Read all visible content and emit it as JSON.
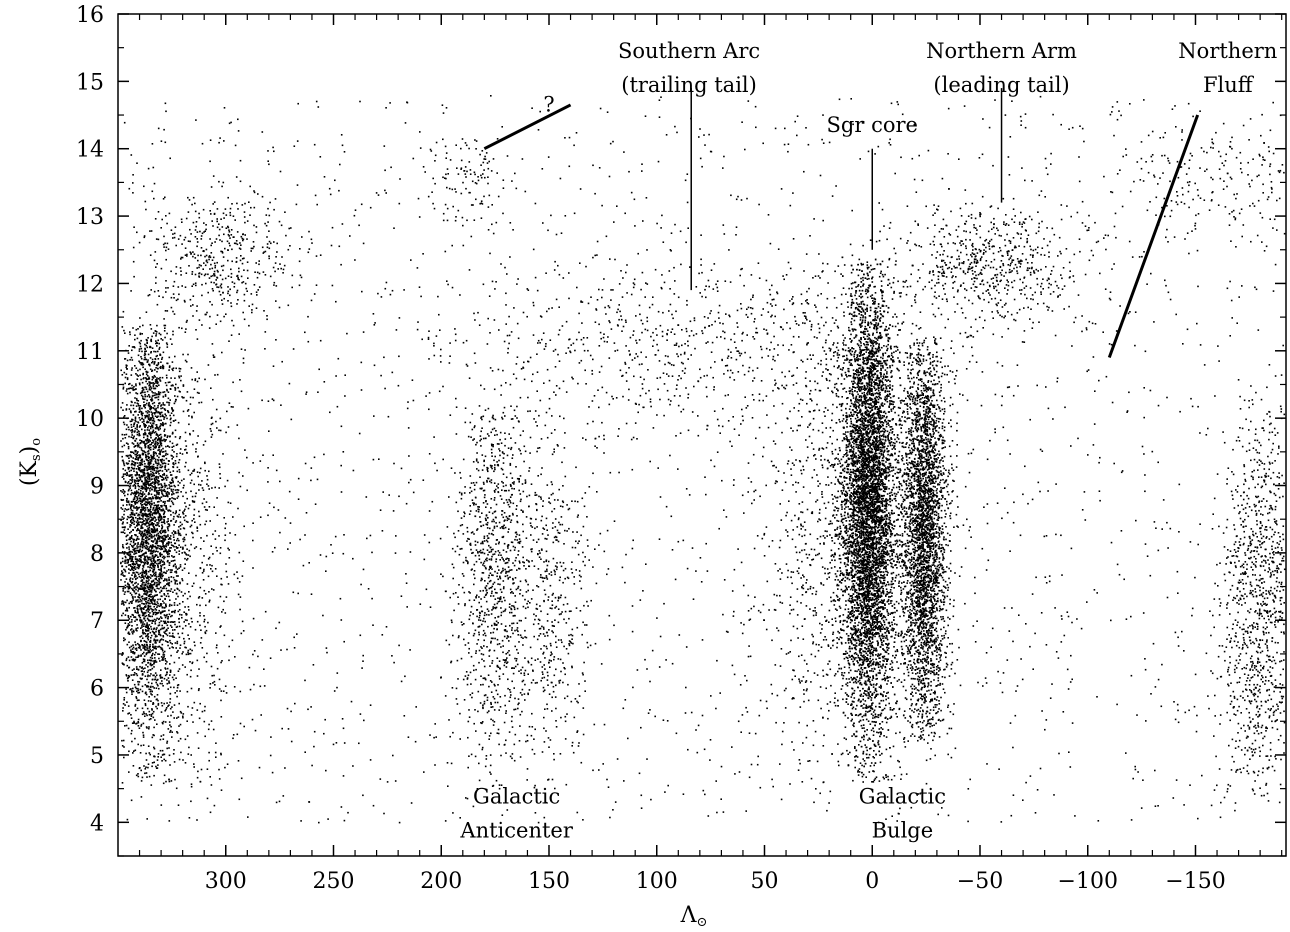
{
  "chart_data": {
    "type": "scatter",
    "title": "",
    "xlabel": "Λ",
    "xlabel_sub": "⊙",
    "ylabel_main": "(K",
    "ylabel_sub1": "s",
    "ylabel_close": ")",
    "ylabel_sub2": "o",
    "xlim": [
      350,
      -192
    ],
    "ylim": [
      3.5,
      16
    ],
    "grid": false,
    "legend": "none",
    "xticks": [
      300,
      250,
      200,
      150,
      100,
      50,
      0,
      -50,
      -100,
      -150
    ],
    "xtick_labels": [
      "300",
      "250",
      "200",
      "150",
      "100",
      "50",
      "0",
      "−50",
      "−100",
      "−150"
    ],
    "yticks": [
      4,
      5,
      6,
      7,
      8,
      9,
      10,
      11,
      12,
      13,
      14,
      15,
      16
    ],
    "ytick_labels": [
      "4",
      "5",
      "6",
      "7",
      "8",
      "9",
      "10",
      "11",
      "12",
      "13",
      "14",
      "15",
      "16"
    ],
    "marker_color": "#000000",
    "annotations": [
      {
        "lines": [
          "Southern Arc",
          "(trailing tail)"
        ],
        "x": 85,
        "y": 15.35,
        "pointer": [
          [
            84,
            14.9
          ],
          [
            84,
            11.9
          ]
        ]
      },
      {
        "lines": [
          "Northern Arm",
          "(leading tail)"
        ],
        "x": -60,
        "y": 15.35,
        "pointer": [
          [
            -60,
            14.9
          ],
          [
            -60,
            13.2
          ]
        ]
      },
      {
        "lines": [
          "Northern",
          "Fluff"
        ],
        "x": -165,
        "y": 15.35,
        "pointer": [
          [
            -151,
            14.5
          ],
          [
            -110,
            10.9
          ]
        ]
      },
      {
        "lines": [
          "Sgr core"
        ],
        "x": 0,
        "y": 14.25,
        "pointer": [
          [
            0,
            14.0
          ],
          [
            0,
            12.5
          ]
        ]
      },
      {
        "lines": [
          "?"
        ],
        "x": 150,
        "y": 14.55,
        "pointer": [
          [
            140,
            14.65
          ],
          [
            180,
            14.0
          ]
        ]
      },
      {
        "lines": [
          "Galactic",
          "Anticenter"
        ],
        "x": 165,
        "y": 4.28,
        "pointer": null
      },
      {
        "lines": [
          "Galactic",
          "Bulge"
        ],
        "x": -14,
        "y": 4.28,
        "pointer": null
      }
    ],
    "point_clusters": [
      {
        "name": "left-band",
        "x_center": 336,
        "x_spread": 7,
        "y_center": 8.4,
        "y_spread": 1.6,
        "y_min": 4.6,
        "y_max": 11.4,
        "count": 3800
      },
      {
        "name": "left-halo",
        "x_center": 318,
        "x_spread": 14,
        "y_center": 8.0,
        "y_spread": 1.8,
        "y_min": 4.5,
        "y_max": 12,
        "count": 700
      },
      {
        "name": "anticenter",
        "x_center": 176,
        "x_spread": 9,
        "y_center": 7.8,
        "y_spread": 1.4,
        "y_min": 4.5,
        "y_max": 10.2,
        "count": 1000
      },
      {
        "name": "anticenter-2",
        "x_center": 150,
        "x_spread": 9,
        "y_center": 7.3,
        "y_spread": 1.3,
        "y_min": 4.5,
        "y_max": 9.8,
        "count": 450
      },
      {
        "name": "bulge",
        "x_center": 2,
        "x_spread": 6,
        "y_center": 8.7,
        "y_spread": 1.7,
        "y_min": 4.6,
        "y_max": 12.4,
        "count": 7000
      },
      {
        "name": "bulge-halo",
        "x_center": 8,
        "x_spread": 22,
        "y_center": 8.2,
        "y_spread": 1.8,
        "y_min": 4.5,
        "y_max": 12.8,
        "count": 1400
      },
      {
        "name": "inner-band",
        "x_center": -24,
        "x_spread": 5,
        "y_center": 8.3,
        "y_spread": 1.5,
        "y_min": 5.2,
        "y_max": 11.2,
        "count": 3200
      },
      {
        "name": "right-band",
        "x_center": -180,
        "x_spread": 9,
        "y_center": 7.2,
        "y_spread": 1.6,
        "y_min": 4.3,
        "y_max": 10.5,
        "count": 1100
      },
      {
        "name": "northern-arm",
        "x_center": -55,
        "x_spread": 20,
        "y_center": 12.3,
        "y_spread": 0.45,
        "y_min": 11.2,
        "y_max": 13.2,
        "count": 600
      },
      {
        "name": "southern-arc",
        "x_center": 90,
        "x_spread": 55,
        "y_center": 11.1,
        "y_spread": 0.6,
        "y_min": 9.4,
        "y_max": 12.6,
        "count": 650
      },
      {
        "name": "leading-tail-top-left",
        "x_center": 305,
        "x_spread": 18,
        "y_center": 12.4,
        "y_spread": 0.5,
        "y_min": 11.2,
        "y_max": 13.6,
        "count": 450
      },
      {
        "name": "question-clump",
        "x_center": 188,
        "x_spread": 10,
        "y_center": 13.6,
        "y_spread": 0.4,
        "y_min": 12.8,
        "y_max": 14.2,
        "count": 110
      },
      {
        "name": "fluff",
        "x_center": -160,
        "x_spread": 25,
        "y_center": 13.5,
        "y_spread": 0.5,
        "y_min": 12.4,
        "y_max": 14.3,
        "count": 180
      },
      {
        "name": "background",
        "x_center": 80,
        "x_spread": 270,
        "y_center": 9.0,
        "y_spread": 4.0,
        "y_min": 4,
        "y_max": 14.8,
        "count": 2200
      }
    ]
  }
}
